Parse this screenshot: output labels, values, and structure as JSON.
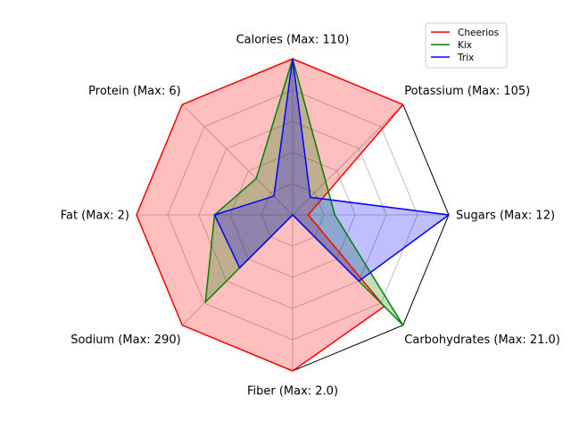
{
  "chart_data": {
    "type": "radar",
    "axes": [
      {
        "label": "Calories (Max: 110)",
        "max": 110
      },
      {
        "label": "Potassium (Max: 105)",
        "max": 105
      },
      {
        "label": "Sugars (Max: 12)",
        "max": 12
      },
      {
        "label": "Carbohydrates (Max: 21.0)",
        "max": 21.0
      },
      {
        "label": "Fiber (Max: 2.0)",
        "max": 2.0
      },
      {
        "label": "Sodium (Max: 290)",
        "max": 290
      },
      {
        "label": "Fat (Max: 2)",
        "max": 2
      },
      {
        "label": "Protein (Max: 6)",
        "max": 6
      }
    ],
    "series": [
      {
        "name": "Cheerios",
        "color": "#ff0000",
        "values": [
          1.0,
          1.0,
          0.1,
          0.83,
          1.0,
          1.0,
          1.0,
          1.0
        ]
      },
      {
        "name": "Kix",
        "color": "#008000",
        "values": [
          1.0,
          0.3,
          0.27,
          1.0,
          0.0,
          0.79,
          0.5,
          0.33
        ]
      },
      {
        "name": "Trix",
        "color": "#0000ff",
        "values": [
          1.0,
          0.16,
          1.0,
          0.6,
          0.0,
          0.48,
          0.5,
          0.17
        ]
      }
    ],
    "range": [
      0,
      1
    ],
    "grid": true,
    "legend_position": "top-right"
  }
}
